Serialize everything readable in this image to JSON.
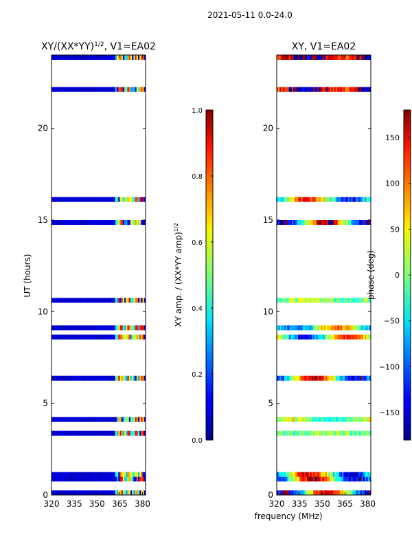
{
  "chart_data": {
    "suptitle": "2021-05-11 0.0-24.0",
    "xlabel": "frequency (MHz)",
    "panels": [
      {
        "id": "amp",
        "type": "heatmap",
        "title": "XY/(XX*YY)^1/2, V1=EA02",
        "title_main": "XY/(XX*YY)",
        "title_sup": "1/2",
        "title_tail": ", V1=EA02",
        "ylabel": "UT (hours)",
        "xlim": [
          320,
          382
        ],
        "ylim": [
          0,
          24
        ],
        "xticks": [
          320,
          335,
          350,
          365,
          380
        ],
        "yticks": [
          0,
          5,
          10,
          15,
          20
        ],
        "colorbar": {
          "label_main": "XY amp. / (XX*YY amp)",
          "label_sup": "1/2",
          "range": [
            0.0,
            1.0
          ],
          "ticks": [
            "0.0",
            "0.2",
            "0.4",
            "0.6",
            "0.8",
            "1.0"
          ]
        },
        "value_model": {
          "background": 0.08,
          "bright_band_mhz": [
            362,
            381
          ],
          "bright_band_level": 0.45,
          "peak_channels_mhz": [
            365.5,
            371,
            376,
            379.5
          ],
          "peak_level": 0.75
        }
      },
      {
        "id": "phase",
        "type": "heatmap",
        "title": "XY, V1=EA02",
        "ylabel": "",
        "xlim": [
          320,
          382
        ],
        "ylim": [
          0,
          24
        ],
        "xticks": [
          320,
          335,
          350,
          365,
          380
        ],
        "yticks": [
          0,
          5,
          10,
          15,
          20
        ],
        "colorbar": {
          "label": "phase (deg)",
          "range": [
            -180,
            180
          ],
          "ticks": [
            "−150",
            "−100",
            "−50",
            "0",
            "50",
            "100",
            "150"
          ]
        },
        "value_model": {
          "top_block_hours": [
            22,
            24
          ],
          "top_block_phase_deg": 150
        }
      }
    ],
    "time_coverage_hours": [
      [
        0.0,
        4.6
      ],
      [
        5.9,
        16.7
      ],
      [
        22.0,
        24.0
      ]
    ],
    "gap_rows_hours": [
      0.35,
      0.6,
      1.4,
      1.75,
      1.95,
      2.05,
      2.3,
      2.55,
      2.85,
      3.0,
      3.2,
      3.55,
      3.75,
      4.3,
      6.05,
      6.2,
      6.6,
      6.85,
      7.0,
      7.35,
      7.75,
      8.1,
      8.45,
      8.8,
      9.35,
      9.55,
      9.75,
      9.95,
      10.15,
      10.35,
      10.9,
      11.1,
      11.25,
      11.4,
      11.55,
      11.75,
      11.9,
      12.1,
      12.3,
      12.5,
      12.75,
      12.95,
      13.2,
      13.45,
      13.65,
      13.85,
      14.15,
      14.4,
      14.7,
      15.05,
      15.35,
      15.75,
      16.35,
      16.55,
      22.35,
      22.55,
      22.75,
      22.95,
      23.15,
      23.3,
      23.5
    ]
  }
}
